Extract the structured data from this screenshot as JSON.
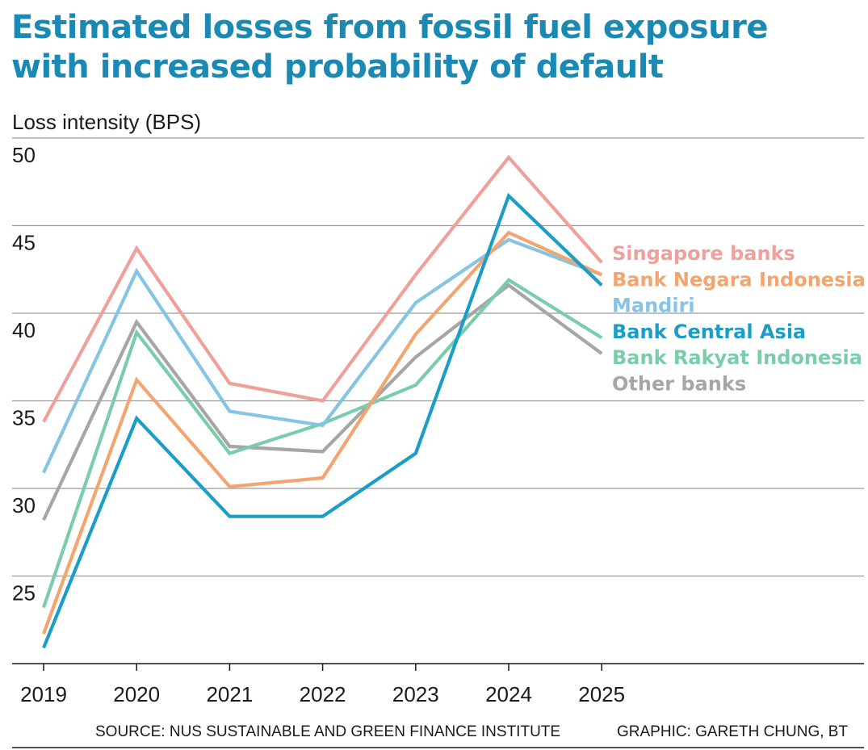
{
  "chart_data": {
    "type": "line",
    "title": [
      "Estimated losses from fossil fuel exposure",
      "with increased probability of default"
    ],
    "ylabel": "Loss intensity (BPS)",
    "xlabel": "",
    "categories": [
      "2019",
      "2020",
      "2021",
      "2022",
      "2023",
      "2024",
      "2025"
    ],
    "ylim": [
      20,
      50
    ],
    "yticks": [
      25,
      30,
      35,
      40,
      45,
      50
    ],
    "grid": true,
    "legend_placement": "right",
    "series": [
      {
        "name": "Singapore banks",
        "color": "#f0a09a",
        "values": [
          33.8,
          43.7,
          36.0,
          35.0,
          42.2,
          48.9,
          42.9
        ]
      },
      {
        "name": "Bank Negara Indonesia",
        "color": "#f3a56f",
        "values": [
          21.7,
          36.2,
          30.1,
          30.6,
          38.8,
          44.6,
          42.2
        ]
      },
      {
        "name": "Mandiri",
        "color": "#86c4e3",
        "values": [
          30.9,
          42.4,
          34.4,
          33.6,
          40.6,
          44.2,
          42.2
        ]
      },
      {
        "name": "Bank Central Asia",
        "color": "#1a9dc6",
        "values": [
          20.9,
          34.0,
          28.4,
          28.4,
          32.0,
          46.7,
          41.6
        ]
      },
      {
        "name": "Bank Rakyat Indonesia",
        "color": "#79cda8",
        "values": [
          23.2,
          38.9,
          32.0,
          33.7,
          35.9,
          41.9,
          38.6
        ]
      },
      {
        "name": "Other banks",
        "color": "#a6a6a6",
        "values": [
          28.2,
          39.5,
          32.4,
          32.1,
          37.5,
          41.6,
          37.7
        ]
      }
    ]
  },
  "footer": {
    "source": "SOURCE: NUS SUSTAINABLE AND GREEN FINANCE INSTITUTE",
    "credit": "GRAPHIC: GARETH CHUNG, BT"
  }
}
